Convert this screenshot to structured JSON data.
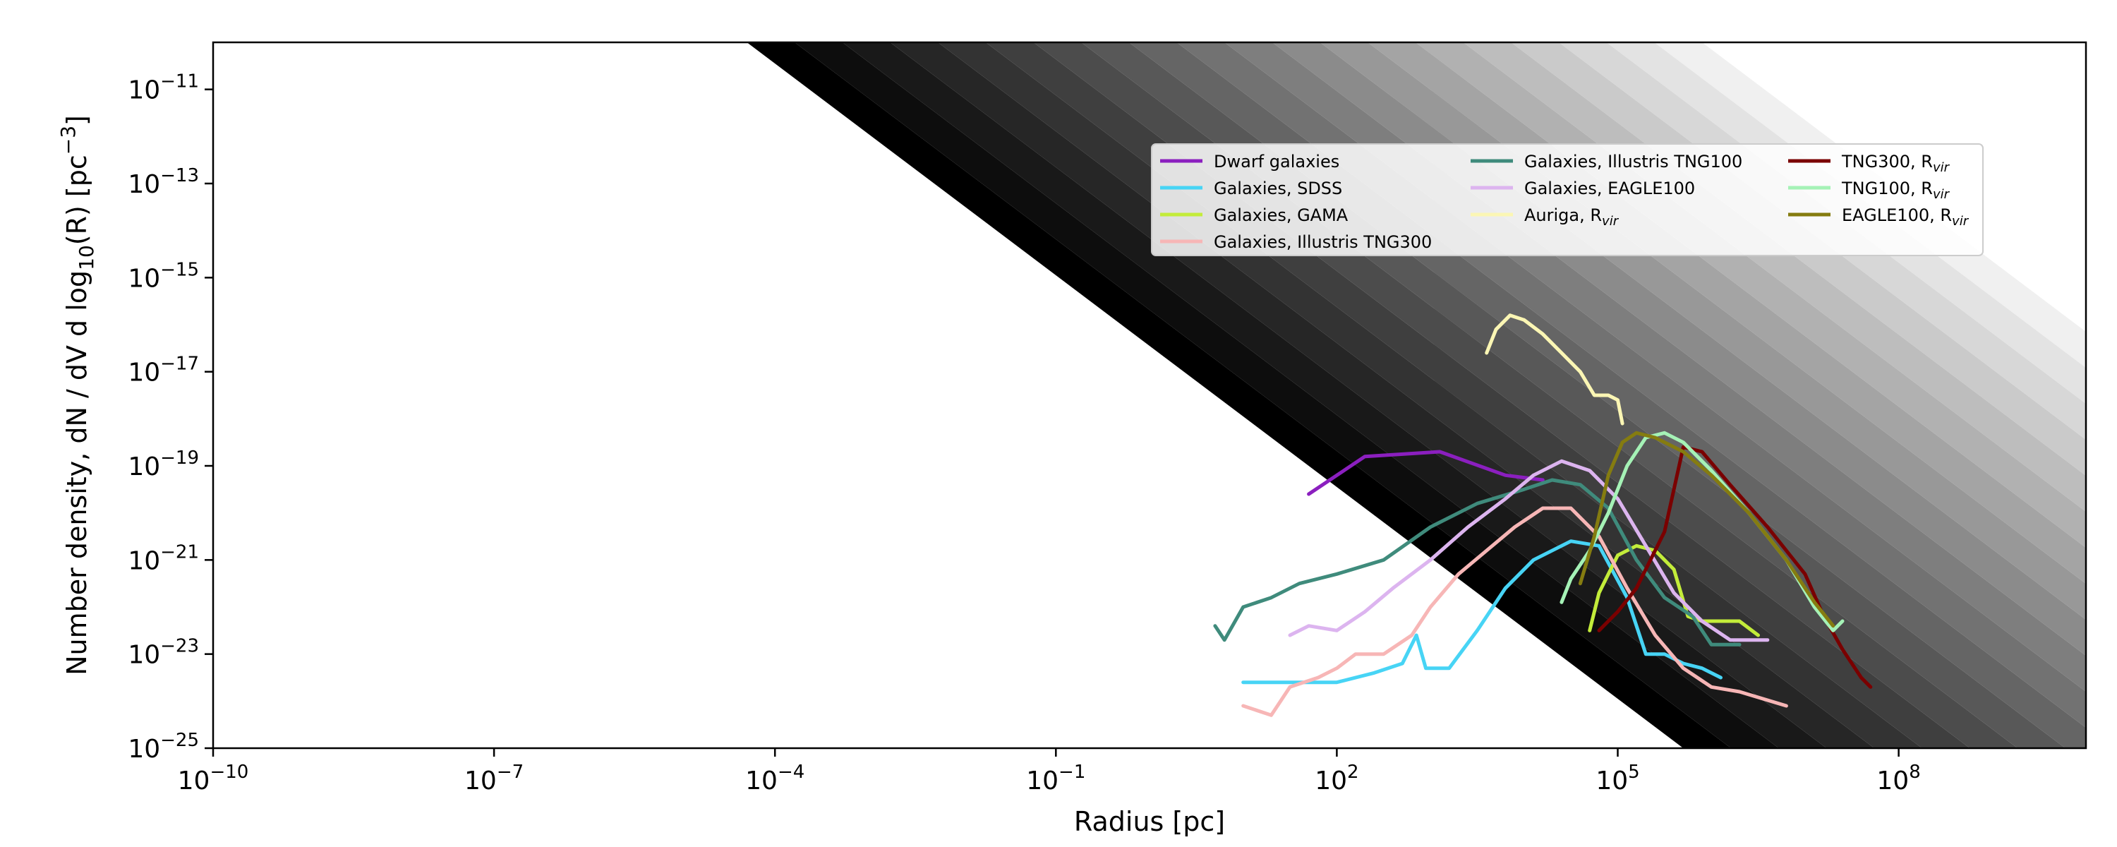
{
  "chart_data": {
    "type": "line",
    "title": "",
    "xlabel": "Radius [pc]",
    "ylabel_parts": [
      "Number density, dN / dV d log",
      "10",
      "(R) [pc",
      "−3",
      "]"
    ],
    "xscale": "log",
    "yscale": "log",
    "xlim_log10": [
      -10,
      10
    ],
    "ylim_log10": [
      -25,
      -10
    ],
    "xticks": [
      {
        "log10": -10,
        "base": "10",
        "exp": "−10"
      },
      {
        "log10": -7,
        "base": "10",
        "exp": "−7"
      },
      {
        "log10": -4,
        "base": "10",
        "exp": "−4"
      },
      {
        "log10": -1,
        "base": "10",
        "exp": "−1"
      },
      {
        "log10": 2,
        "base": "10",
        "exp": "2"
      },
      {
        "log10": 5,
        "base": "10",
        "exp": "5"
      },
      {
        "log10": 8,
        "base": "10",
        "exp": "8"
      }
    ],
    "yticks": [
      {
        "log10": -25,
        "base": "10",
        "exp": "−25"
      },
      {
        "log10": -23,
        "base": "10",
        "exp": "−23"
      },
      {
        "log10": -21,
        "base": "10",
        "exp": "−21"
      },
      {
        "log10": -19,
        "base": "10",
        "exp": "−19"
      },
      {
        "log10": -17,
        "base": "10",
        "exp": "−17"
      },
      {
        "log10": -15,
        "base": "10",
        "exp": "−15"
      },
      {
        "log10": -13,
        "base": "10",
        "exp": "−13"
      },
      {
        "log10": -11,
        "base": "10",
        "exp": "−11"
      }
    ],
    "grid": false,
    "legend_position": "upper-right",
    "background_bands": {
      "description": "gray gradient diagonal bands, darkest on left",
      "count": 20,
      "band_x_log10_at_y_top": [
        -4.3,
        5.9
      ],
      "slope_dlogy_per_dlogx": -1.5
    },
    "series": [
      {
        "name": "Dwarf galaxies",
        "sub": "",
        "color": "#8b1fbf",
        "points": [
          [
            1.7,
            -19.6
          ],
          [
            2.3,
            -18.8
          ],
          [
            3.1,
            -18.7
          ],
          [
            3.8,
            -19.2
          ],
          [
            4.2,
            -19.3
          ]
        ]
      },
      {
        "name": "Galaxies, SDSS",
        "sub": "",
        "color": "#47d4f5",
        "points": [
          [
            1.0,
            -23.6
          ],
          [
            1.5,
            -23.6
          ],
          [
            2.0,
            -23.6
          ],
          [
            2.4,
            -23.4
          ],
          [
            2.7,
            -23.2
          ],
          [
            2.85,
            -22.6
          ],
          [
            2.95,
            -23.3
          ],
          [
            3.2,
            -23.3
          ],
          [
            3.5,
            -22.5
          ],
          [
            3.8,
            -21.6
          ],
          [
            4.1,
            -21.0
          ],
          [
            4.5,
            -20.6
          ],
          [
            4.8,
            -20.7
          ],
          [
            5.1,
            -21.8
          ],
          [
            5.3,
            -23.0
          ],
          [
            5.5,
            -23.0
          ],
          [
            5.7,
            -23.2
          ],
          [
            5.9,
            -23.3
          ],
          [
            6.1,
            -23.5
          ]
        ]
      },
      {
        "name": "Galaxies, GAMA",
        "sub": "",
        "color": "#c3ec3a",
        "points": [
          [
            4.7,
            -22.5
          ],
          [
            4.8,
            -21.7
          ],
          [
            4.9,
            -21.3
          ],
          [
            5.0,
            -20.9
          ],
          [
            5.2,
            -20.7
          ],
          [
            5.4,
            -20.8
          ],
          [
            5.6,
            -21.2
          ],
          [
            5.75,
            -22.2
          ],
          [
            5.9,
            -22.3
          ],
          [
            6.3,
            -22.3
          ],
          [
            6.5,
            -22.6
          ]
        ]
      },
      {
        "name": "Galaxies, Illustris TNG300",
        "sub": "",
        "color": "#f7b6b6",
        "points": [
          [
            1.0,
            -24.1
          ],
          [
            1.3,
            -24.3
          ],
          [
            1.5,
            -23.7
          ],
          [
            1.8,
            -23.5
          ],
          [
            2.0,
            -23.3
          ],
          [
            2.2,
            -23.0
          ],
          [
            2.5,
            -23.0
          ],
          [
            2.8,
            -22.6
          ],
          [
            3.0,
            -22.0
          ],
          [
            3.3,
            -21.3
          ],
          [
            3.6,
            -20.8
          ],
          [
            3.9,
            -20.3
          ],
          [
            4.2,
            -19.9
          ],
          [
            4.5,
            -19.9
          ],
          [
            4.8,
            -20.5
          ],
          [
            5.1,
            -21.6
          ],
          [
            5.4,
            -22.6
          ],
          [
            5.7,
            -23.3
          ],
          [
            6.0,
            -23.7
          ],
          [
            6.3,
            -23.8
          ],
          [
            6.8,
            -24.1
          ]
        ]
      },
      {
        "name": "Galaxies, Illustris TNG100",
        "sub": "",
        "color": "#3f8b7c",
        "points": [
          [
            0.7,
            -22.4
          ],
          [
            0.8,
            -22.7
          ],
          [
            1.0,
            -22.0
          ],
          [
            1.3,
            -21.8
          ],
          [
            1.6,
            -21.5
          ],
          [
            2.0,
            -21.3
          ],
          [
            2.5,
            -21.0
          ],
          [
            3.0,
            -20.3
          ],
          [
            3.5,
            -19.8
          ],
          [
            4.0,
            -19.5
          ],
          [
            4.3,
            -19.3
          ],
          [
            4.6,
            -19.4
          ],
          [
            4.9,
            -19.9
          ],
          [
            5.2,
            -21.0
          ],
          [
            5.5,
            -21.8
          ],
          [
            5.8,
            -22.2
          ],
          [
            6.0,
            -22.8
          ],
          [
            6.3,
            -22.8
          ]
        ]
      },
      {
        "name": "Galaxies, EAGLE100",
        "sub": "",
        "color": "#dcb4ef",
        "points": [
          [
            1.5,
            -22.6
          ],
          [
            1.7,
            -22.4
          ],
          [
            2.0,
            -22.5
          ],
          [
            2.3,
            -22.1
          ],
          [
            2.6,
            -21.6
          ],
          [
            3.0,
            -21.0
          ],
          [
            3.4,
            -20.3
          ],
          [
            3.8,
            -19.7
          ],
          [
            4.1,
            -19.2
          ],
          [
            4.4,
            -18.9
          ],
          [
            4.7,
            -19.1
          ],
          [
            5.0,
            -19.7
          ],
          [
            5.3,
            -20.7
          ],
          [
            5.6,
            -21.7
          ],
          [
            5.9,
            -22.3
          ],
          [
            6.2,
            -22.7
          ],
          [
            6.6,
            -22.7
          ]
        ]
      },
      {
        "name": "Auriga, R",
        "sub": "vir",
        "color": "#fbf6b4",
        "points": [
          [
            3.6,
            -16.6
          ],
          [
            3.7,
            -16.1
          ],
          [
            3.85,
            -15.8
          ],
          [
            4.0,
            -15.9
          ],
          [
            4.2,
            -16.2
          ],
          [
            4.4,
            -16.6
          ],
          [
            4.6,
            -17.0
          ],
          [
            4.75,
            -17.5
          ],
          [
            4.9,
            -17.5
          ],
          [
            5.0,
            -17.6
          ],
          [
            5.05,
            -18.1
          ]
        ]
      },
      {
        "name": "TNG300, R",
        "sub": "vir",
        "color": "#7a0000",
        "points": [
          [
            4.8,
            -22.5
          ],
          [
            5.0,
            -22.1
          ],
          [
            5.2,
            -21.6
          ],
          [
            5.35,
            -21.0
          ],
          [
            5.5,
            -20.4
          ],
          [
            5.6,
            -19.5
          ],
          [
            5.7,
            -18.6
          ],
          [
            5.9,
            -18.7
          ],
          [
            6.2,
            -19.4
          ],
          [
            6.6,
            -20.3
          ],
          [
            7.0,
            -21.3
          ],
          [
            7.2,
            -22.2
          ],
          [
            7.4,
            -22.9
          ],
          [
            7.6,
            -23.5
          ],
          [
            7.7,
            -23.7
          ]
        ]
      },
      {
        "name": "TNG100, R",
        "sub": "vir",
        "color": "#a5f2b6",
        "points": [
          [
            4.4,
            -21.9
          ],
          [
            4.5,
            -21.4
          ],
          [
            4.7,
            -20.8
          ],
          [
            4.9,
            -20.0
          ],
          [
            5.1,
            -19.0
          ],
          [
            5.3,
            -18.4
          ],
          [
            5.5,
            -18.3
          ],
          [
            5.7,
            -18.5
          ],
          [
            6.0,
            -19.1
          ],
          [
            6.4,
            -20.0
          ],
          [
            6.8,
            -21.0
          ],
          [
            7.1,
            -22.0
          ],
          [
            7.3,
            -22.5
          ],
          [
            7.4,
            -22.3
          ]
        ]
      },
      {
        "name": "EAGLE100, R",
        "sub": "vir",
        "color": "#857c10",
        "points": [
          [
            4.6,
            -21.5
          ],
          [
            4.75,
            -20.5
          ],
          [
            4.9,
            -19.2
          ],
          [
            5.05,
            -18.5
          ],
          [
            5.2,
            -18.3
          ],
          [
            5.4,
            -18.4
          ],
          [
            5.7,
            -18.7
          ],
          [
            6.0,
            -19.2
          ],
          [
            6.4,
            -20.0
          ],
          [
            6.8,
            -21.0
          ],
          [
            7.1,
            -21.9
          ],
          [
            7.3,
            -22.4
          ]
        ]
      }
    ]
  }
}
